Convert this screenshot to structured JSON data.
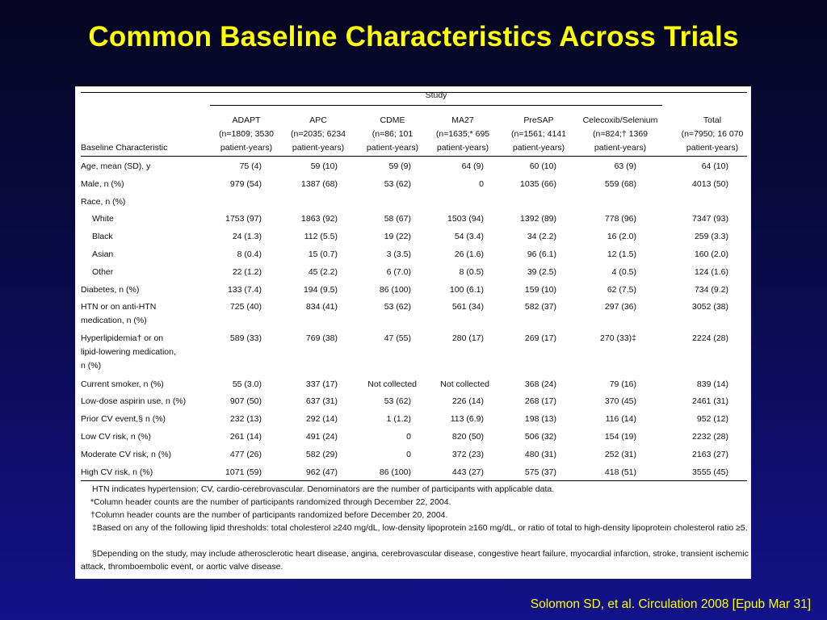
{
  "title": "Common Baseline Characteristics Across Trials",
  "citation": "Solomon SD, et al. Circulation 2008 [Epub Mar 31]",
  "table": {
    "study_label": "Study",
    "row_header": "Baseline Characteristic",
    "columns": [
      [
        "ADAPT",
        "(n=1809; 3530",
        "patient-years)"
      ],
      [
        "APC",
        "(n=2035; 6234",
        "patient-years)"
      ],
      [
        "CDME",
        "(n=86; 101",
        "patient-years)"
      ],
      [
        "MA27",
        "(n=1635;* 695",
        "patient-years)"
      ],
      [
        "PreSAP",
        "(n=1561; 4141",
        "patient-years)"
      ],
      [
        "Celecoxib/Selenium",
        "(n=824;† 1369",
        "patient-years)"
      ],
      [
        "Total",
        "(n=7950; 16 070",
        "patient-years)"
      ]
    ],
    "rows": [
      {
        "label": [
          "Age, mean (SD), y"
        ],
        "values": [
          "75 (4)",
          "59 (10)",
          "59 (9)",
          "64 (9)",
          "60 (10)",
          "63 (9)",
          "64 (10)"
        ]
      },
      {
        "label": [
          "Male, n (%)"
        ],
        "values": [
          "979 (54)",
          "1387 (68)",
          "53 (62)",
          "0",
          "1035 (66)",
          "559 (68)",
          "4013 (50)"
        ]
      },
      {
        "label": [
          "Race, n (%)"
        ],
        "values": []
      },
      {
        "label": [
          "White"
        ],
        "indent": true,
        "values": [
          "1753 (97)",
          "1863 (92)",
          "58 (67)",
          "1503 (94)",
          "1392 (89)",
          "778 (96)",
          "7347 (93)"
        ]
      },
      {
        "label": [
          "Black"
        ],
        "indent": true,
        "values": [
          "24 (1.3)",
          "112 (5.5)",
          "19 (22)",
          "54 (3.4)",
          "34 (2.2)",
          "16 (2.0)",
          "259 (3.3)"
        ]
      },
      {
        "label": [
          "Asian"
        ],
        "indent": true,
        "values": [
          "8 (0.4)",
          "15 (0.7)",
          "3 (3.5)",
          "26 (1.6)",
          "96 (6.1)",
          "12 (1.5)",
          "160 (2.0)"
        ]
      },
      {
        "label": [
          "Other"
        ],
        "indent": true,
        "values": [
          "22 (1.2)",
          "45 (2.2)",
          "6 (7.0)",
          "8 (0.5)",
          "39 (2.5)",
          "4 (0.5)",
          "124 (1.6)"
        ]
      },
      {
        "label": [
          "Diabetes, n (%)"
        ],
        "values": [
          "133 (7.4)",
          "194 (9.5)",
          "86 (100)",
          "100 (6.1)",
          "159 (10)",
          "62 (7.5)",
          "734 (9.2)"
        ]
      },
      {
        "label": [
          "HTN or on anti-HTN",
          "medication, n (%)"
        ],
        "values": [
          "725 (40)",
          "834 (41)",
          "53 (62)",
          "561 (34)",
          "582 (37)",
          "297 (36)",
          "3052 (38)"
        ]
      },
      {
        "label": [
          "Hyperlipidemia† or on",
          "lipid-lowering medication,",
          "n (%)"
        ],
        "values": [
          "589 (33)",
          "769 (38)",
          "47 (55)",
          "280 (17)",
          "269 (17)",
          "270 (33)‡",
          "2224 (28)"
        ]
      },
      {
        "label": [
          "Current smoker, n (%)"
        ],
        "values": [
          "55 (3.0)",
          "337 (17)",
          "Not collected",
          "Not collected",
          "368 (24)",
          "79 (16)",
          "839 (14)"
        ]
      },
      {
        "label": [
          "Low-dose aspirin use, n (%)"
        ],
        "values": [
          "907 (50)",
          "637 (31)",
          "53 (62)",
          "226 (14)",
          "268 (17)",
          "370 (45)",
          "2461 (31)"
        ]
      },
      {
        "label": [
          "Prior CV event,§ n (%)"
        ],
        "values": [
          "232 (13)",
          "292 (14)",
          "1 (1.2)",
          "113 (6.9)",
          "198 (13)",
          "116 (14)",
          "952 (12)"
        ]
      },
      {
        "label": [
          "Low CV risk, n (%)"
        ],
        "values": [
          "261 (14)",
          "491 (24)",
          "0",
          "820 (50)",
          "506 (32)",
          "154 (19)",
          "2232 (28)"
        ]
      },
      {
        "label": [
          "Moderate CV risk, n (%)"
        ],
        "values": [
          "477 (26)",
          "582 (29)",
          "0",
          "372 (23)",
          "480 (31)",
          "252 (31)",
          "2163 (27)"
        ]
      },
      {
        "label": [
          "High CV risk, n (%)"
        ],
        "values": [
          "1071 (59)",
          "962 (47)",
          "86 (100)",
          "443 (27)",
          "575 (37)",
          "418 (51)",
          "3555 (45)"
        ]
      }
    ],
    "footnotes": [
      "HTN indicates hypertension; CV, cardio-cerebrovascular. Denominators are the number of participants with applicable data.",
      "*Column header counts are the number of participants randomized through December 22, 2004.",
      "†Column header counts are the number of participants randomized before December 20, 2004.",
      "‡Based on any of the following lipid thresholds: total cholesterol ≥240 mg/dL, low-density lipoprotein ≥160 mg/dL, or ratio of total to high-density lipoprotein cholesterol ratio ≥5.",
      "§Depending on the study, may include atherosclerotic heart disease, angina, cerebrovascular disease, congestive heart failure, myocardial infarction, stroke, transient ischemic attack, thromboembolic event, or aortic valve disease."
    ]
  }
}
